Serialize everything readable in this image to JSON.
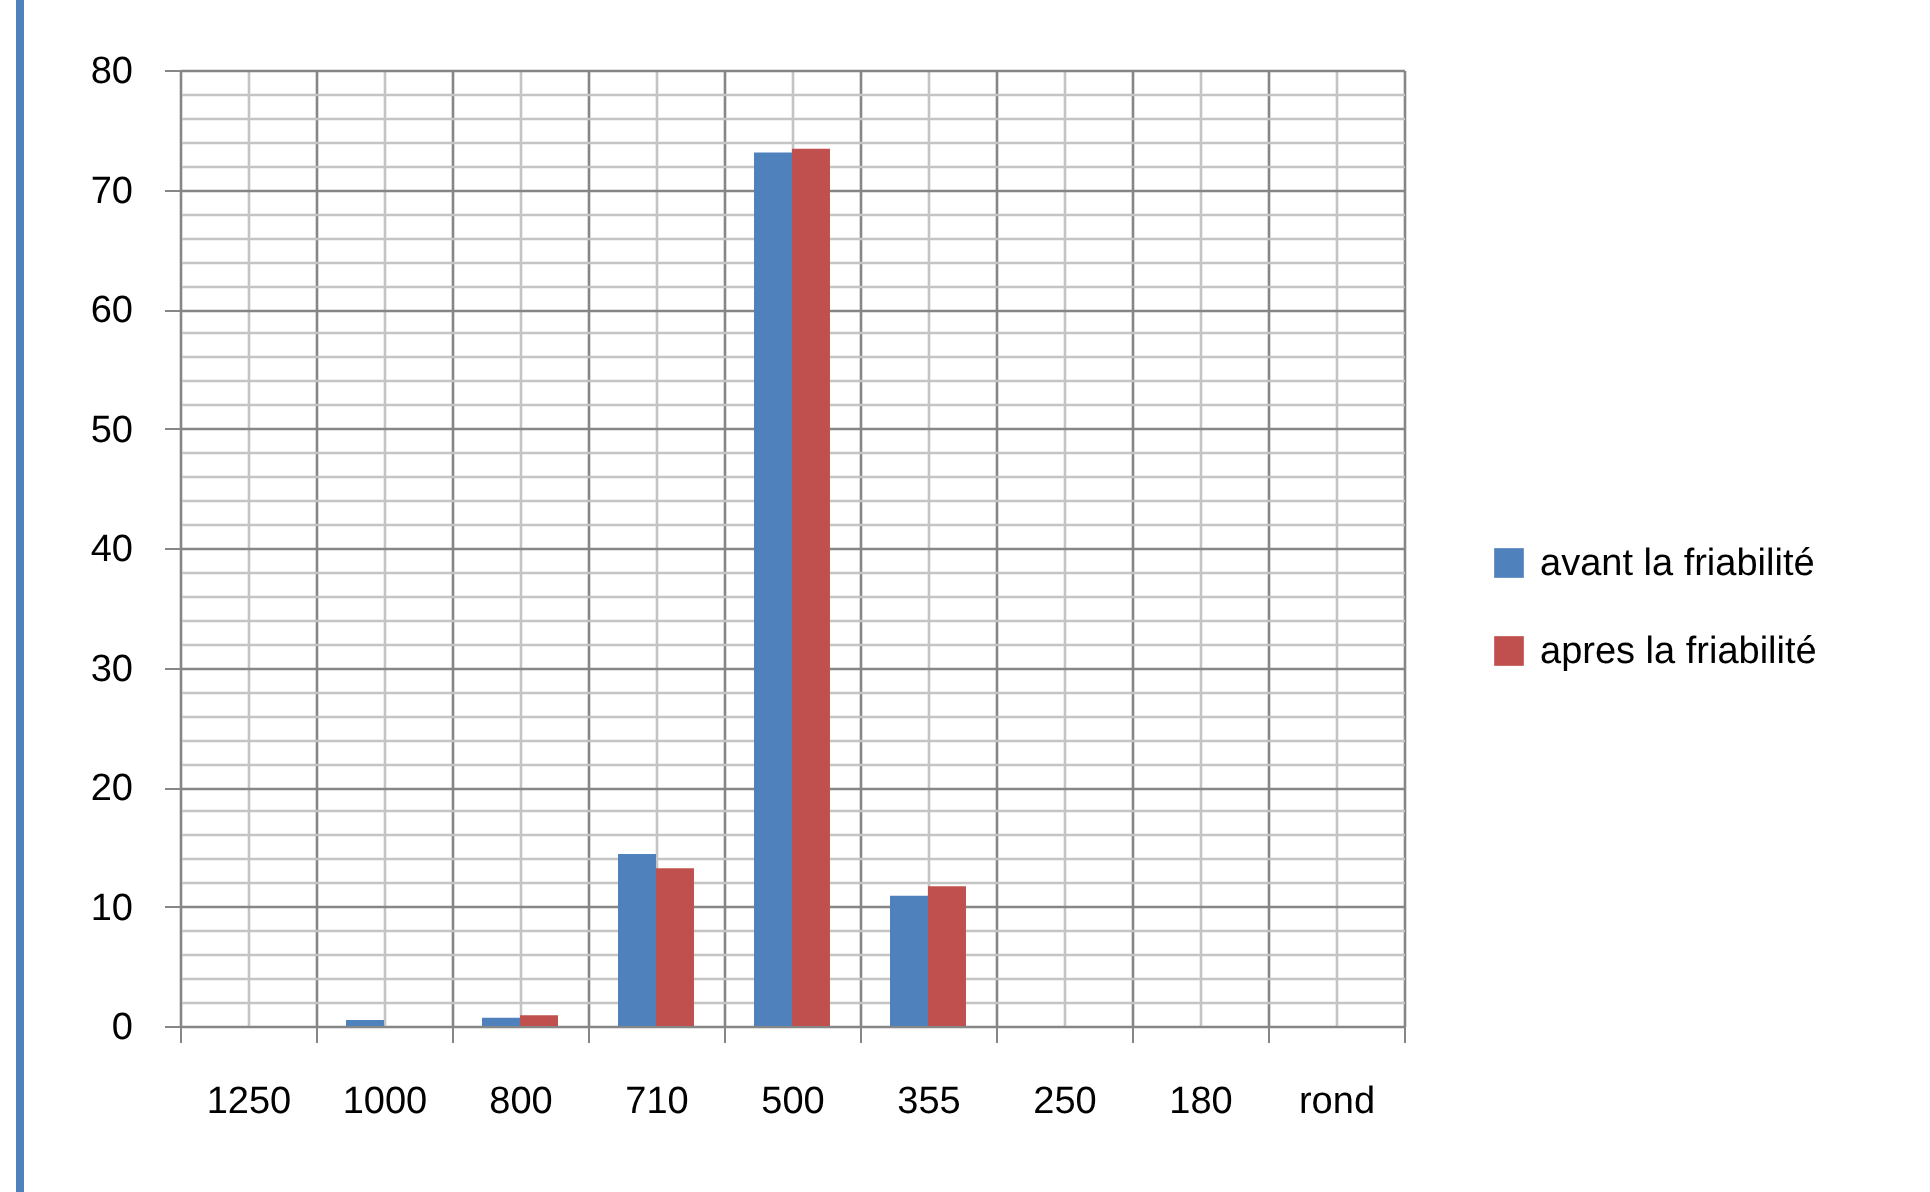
{
  "chart_data": {
    "type": "bar",
    "categories": [
      "1250",
      "1000",
      "800",
      "710",
      "500",
      "355",
      "250",
      "180",
      "rond"
    ],
    "series": [
      {
        "name": "avant la friabilité",
        "color": "#4f81bd",
        "values": [
          0,
          0.5,
          0.7,
          14.4,
          73.1,
          10.9,
          0,
          0,
          0
        ]
      },
      {
        "name": "apres la friabilité",
        "color": "#c0504d",
        "values": [
          0,
          0,
          0.9,
          13.2,
          73.4,
          11.7,
          0,
          0,
          0
        ]
      }
    ],
    "ylim": [
      0,
      80
    ],
    "yticks": [
      0,
      10,
      20,
      30,
      40,
      50,
      60,
      70,
      80
    ],
    "grid": true,
    "legend": "right"
  }
}
